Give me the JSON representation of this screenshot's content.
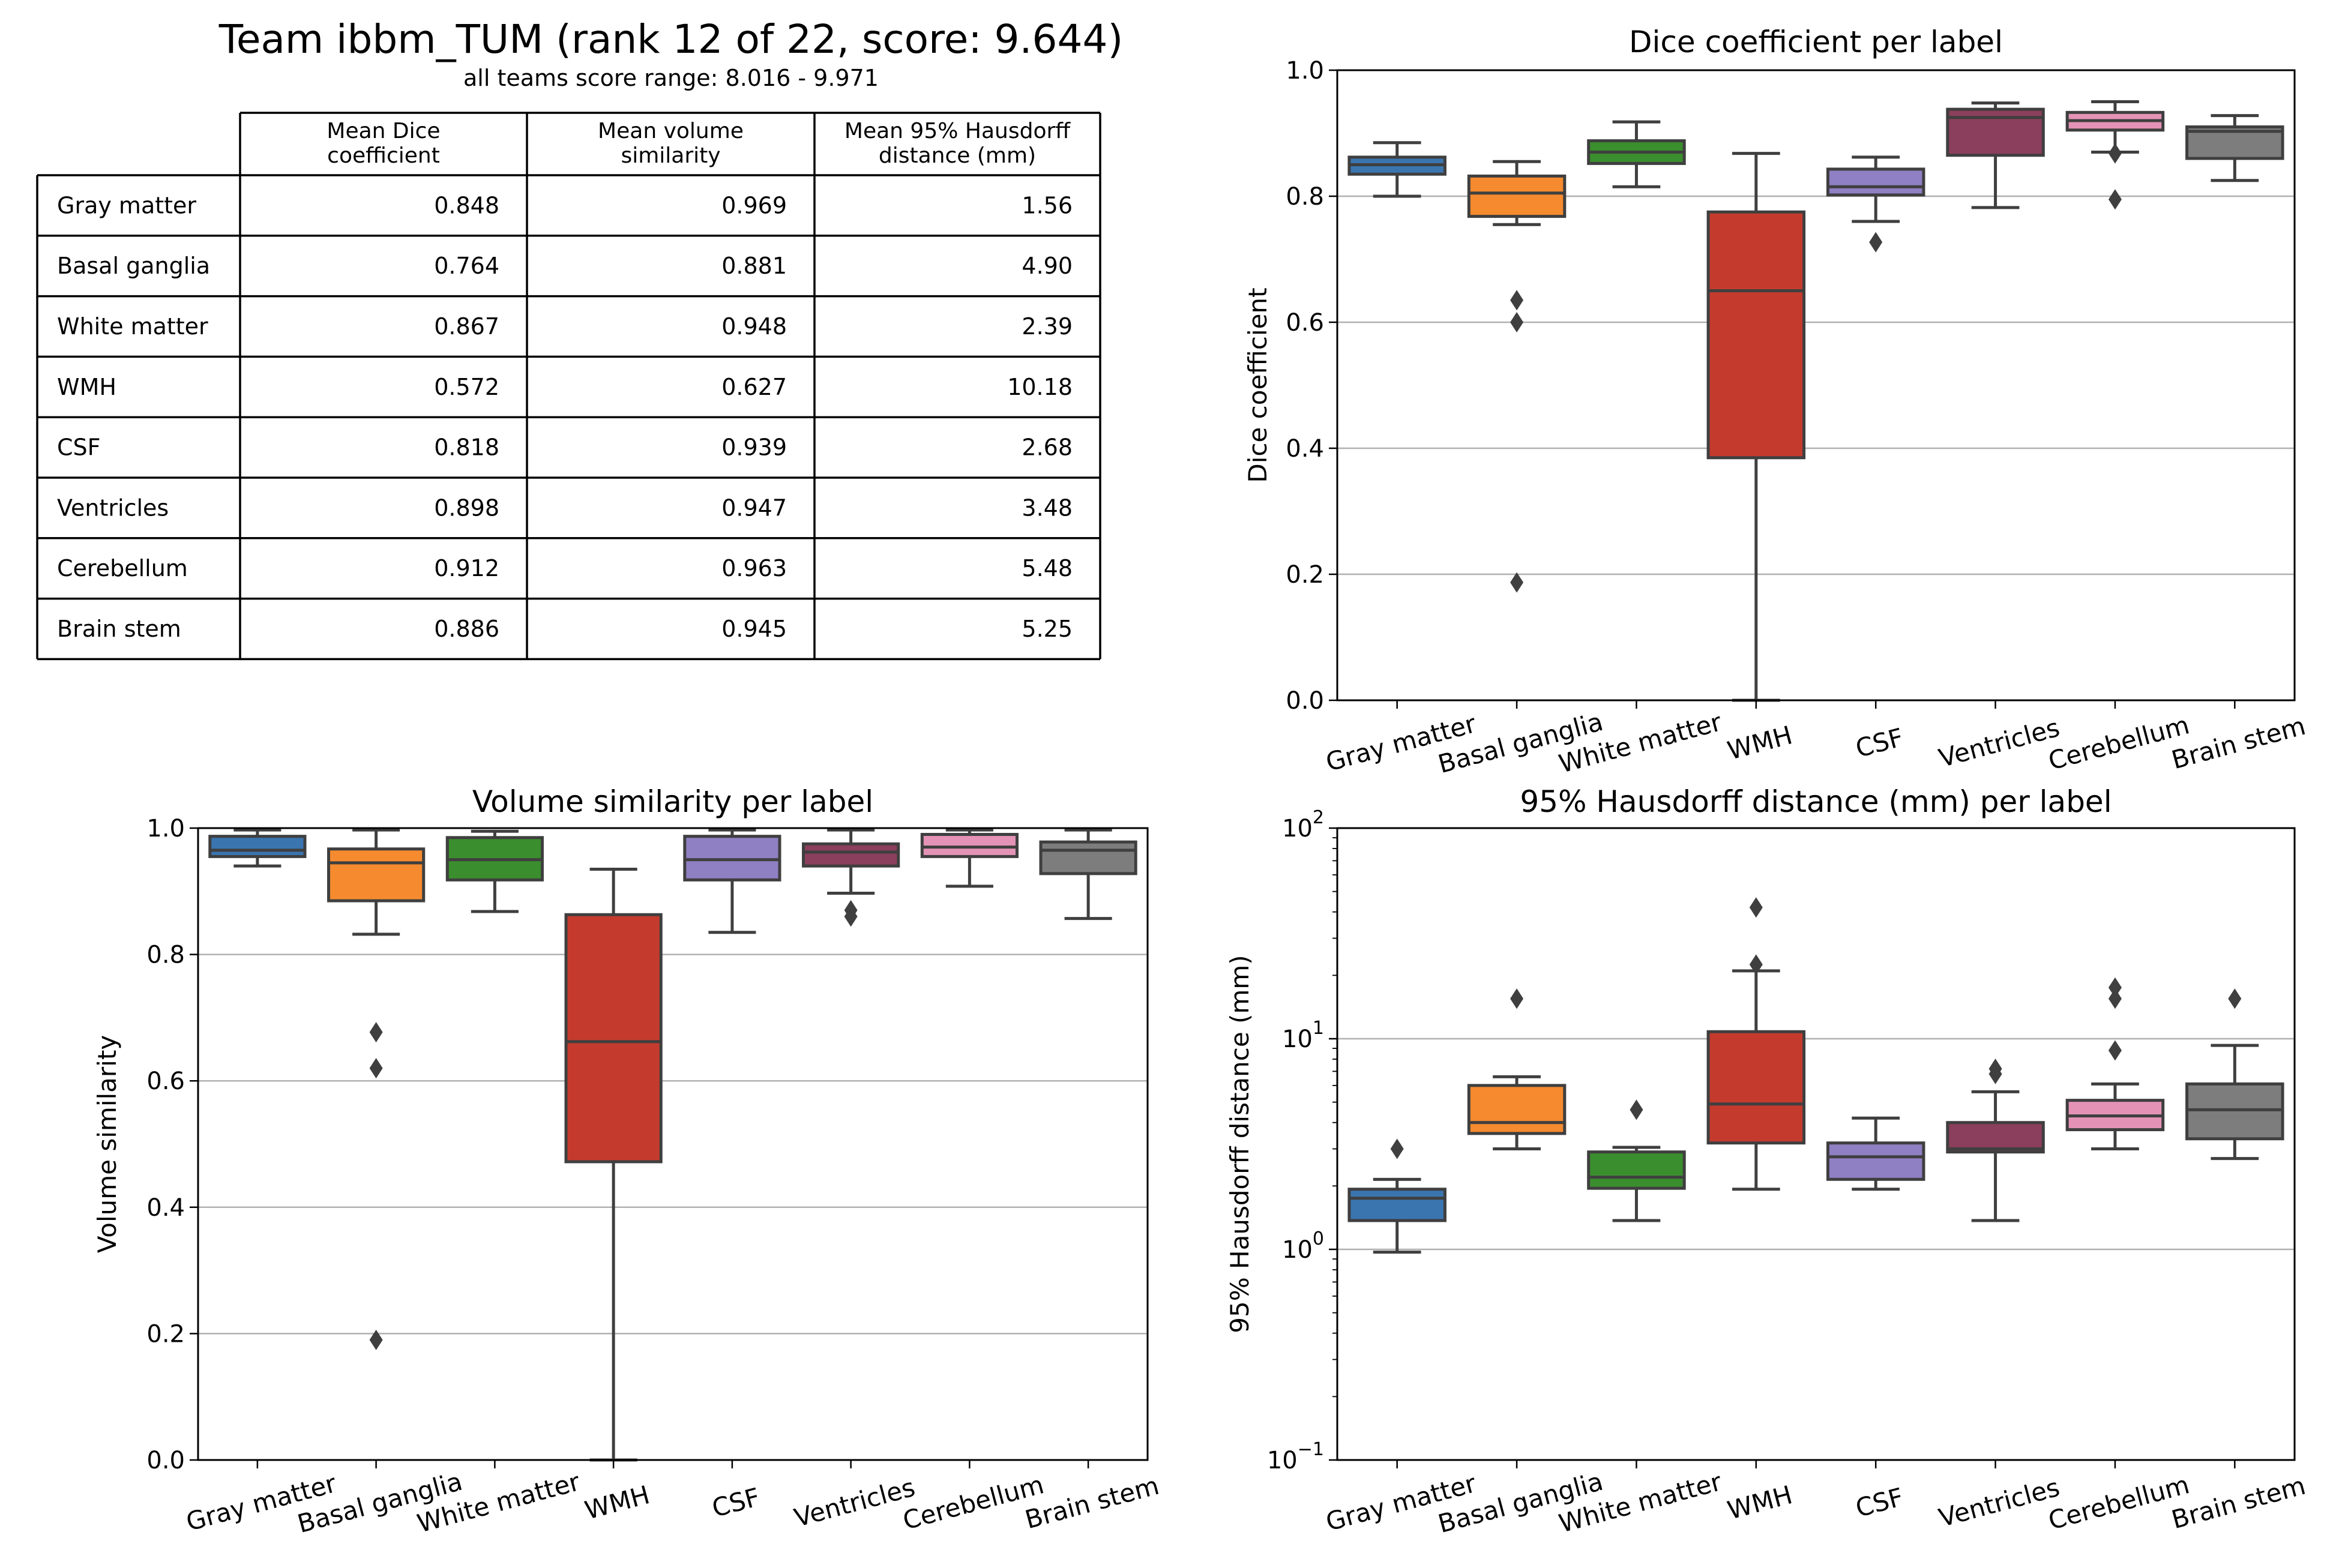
{
  "header": {
    "title": "Team ibbm_TUM (rank 12 of 22, score: 9.644)",
    "subtitle": "all teams score range: 8.016 - 9.971"
  },
  "table": {
    "columns": [
      "Mean Dice\ncoefficient",
      "Mean volume\nsimilarity",
      "Mean 95% Hausdorff\ndistance (mm)"
    ],
    "rows": [
      {
        "label": "Gray matter",
        "values": [
          "0.848",
          "0.969",
          "1.56"
        ]
      },
      {
        "label": "Basal ganglia",
        "values": [
          "0.764",
          "0.881",
          "4.90"
        ]
      },
      {
        "label": "White matter",
        "values": [
          "0.867",
          "0.948",
          "2.39"
        ]
      },
      {
        "label": "WMH",
        "values": [
          "0.572",
          "0.627",
          "10.18"
        ]
      },
      {
        "label": "CSF",
        "values": [
          "0.818",
          "0.939",
          "2.68"
        ]
      },
      {
        "label": "Ventricles",
        "values": [
          "0.898",
          "0.947",
          "3.48"
        ]
      },
      {
        "label": "Cerebellum",
        "values": [
          "0.912",
          "0.963",
          "5.48"
        ]
      },
      {
        "label": "Brain stem",
        "values": [
          "0.886",
          "0.945",
          "5.25"
        ]
      }
    ]
  },
  "colors": [
    "#3a75b0",
    "#f58a2f",
    "#3b8e2e",
    "#c43b2e",
    "#8f7fc3",
    "#8b3f5c",
    "#e493b6",
    "#7d7d7d"
  ],
  "chart_data": [
    {
      "id": "dice",
      "type": "box",
      "title": "Dice coefficient per label",
      "ylabel": "Dice coefficient",
      "xlabel": "",
      "ylim": [
        0,
        1
      ],
      "yscale": "linear",
      "yticks": [
        0.0,
        0.2,
        0.4,
        0.6,
        0.8,
        1.0
      ],
      "ytick_labels": [
        "0.0",
        "0.2",
        "0.4",
        "0.6",
        "0.8",
        "1.0"
      ],
      "grid": "horizontal",
      "categories": [
        "Gray matter",
        "Basal ganglia",
        "White matter",
        "WMH",
        "CSF",
        "Ventricles",
        "Cerebellum",
        "Brain stem"
      ],
      "boxes": [
        {
          "whislo": 0.8,
          "q1": 0.835,
          "med": 0.85,
          "q3": 0.862,
          "whishi": 0.885,
          "fliers": []
        },
        {
          "whislo": 0.755,
          "q1": 0.768,
          "med": 0.805,
          "q3": 0.832,
          "whishi": 0.855,
          "fliers": [
            0.635,
            0.6,
            0.187
          ]
        },
        {
          "whislo": 0.815,
          "q1": 0.852,
          "med": 0.87,
          "q3": 0.888,
          "whishi": 0.918,
          "fliers": []
        },
        {
          "whislo": 0.0,
          "q1": 0.385,
          "med": 0.65,
          "q3": 0.775,
          "whishi": 0.868,
          "fliers": []
        },
        {
          "whislo": 0.76,
          "q1": 0.802,
          "med": 0.815,
          "q3": 0.843,
          "whishi": 0.862,
          "fliers": [
            0.727
          ]
        },
        {
          "whislo": 0.782,
          "q1": 0.865,
          "med": 0.925,
          "q3": 0.938,
          "whishi": 0.948,
          "fliers": []
        },
        {
          "whislo": 0.87,
          "q1": 0.905,
          "med": 0.92,
          "q3": 0.933,
          "whishi": 0.95,
          "fliers": [
            0.868,
            0.795
          ]
        },
        {
          "whislo": 0.825,
          "q1": 0.86,
          "med": 0.903,
          "q3": 0.91,
          "whishi": 0.928,
          "fliers": []
        }
      ]
    },
    {
      "id": "volsim",
      "type": "box",
      "title": "Volume similarity per label",
      "ylabel": "Volume similarity",
      "xlabel": "",
      "ylim": [
        0,
        1
      ],
      "yscale": "linear",
      "yticks": [
        0.0,
        0.2,
        0.4,
        0.6,
        0.8,
        1.0
      ],
      "ytick_labels": [
        "0.0",
        "0.2",
        "0.4",
        "0.6",
        "0.8",
        "1.0"
      ],
      "grid": "horizontal",
      "categories": [
        "Gray matter",
        "Basal ganglia",
        "White matter",
        "WMH",
        "CSF",
        "Ventricles",
        "Cerebellum",
        "Brain stem"
      ],
      "boxes": [
        {
          "whislo": 0.94,
          "q1": 0.955,
          "med": 0.965,
          "q3": 0.987,
          "whishi": 0.997,
          "fliers": []
        },
        {
          "whislo": 0.832,
          "q1": 0.885,
          "med": 0.945,
          "q3": 0.967,
          "whishi": 0.997,
          "fliers": [
            0.677,
            0.62,
            0.19
          ]
        },
        {
          "whislo": 0.868,
          "q1": 0.918,
          "med": 0.95,
          "q3": 0.985,
          "whishi": 0.995,
          "fliers": []
        },
        {
          "whislo": 0.0,
          "q1": 0.472,
          "med": 0.662,
          "q3": 0.863,
          "whishi": 0.935,
          "fliers": []
        },
        {
          "whislo": 0.835,
          "q1": 0.918,
          "med": 0.95,
          "q3": 0.987,
          "whishi": 0.997,
          "fliers": []
        },
        {
          "whislo": 0.897,
          "q1": 0.94,
          "med": 0.962,
          "q3": 0.975,
          "whishi": 0.997,
          "fliers": [
            0.87,
            0.86
          ]
        },
        {
          "whislo": 0.908,
          "q1": 0.955,
          "med": 0.97,
          "q3": 0.99,
          "whishi": 0.997,
          "fliers": []
        },
        {
          "whislo": 0.857,
          "q1": 0.928,
          "med": 0.965,
          "q3": 0.978,
          "whishi": 0.997,
          "fliers": []
        }
      ]
    },
    {
      "id": "hd95",
      "type": "box",
      "title": "95% Hausdorff distance (mm) per label",
      "ylabel": "95% Hausdorff distance (mm)",
      "xlabel": "",
      "ylim": [
        0.1,
        100
      ],
      "yscale": "log",
      "yticks": [
        0.1,
        1,
        10,
        100
      ],
      "ytick_base": "10",
      "ytick_exponents": [
        "−1",
        "0",
        "1",
        "2"
      ],
      "grid": "horizontal",
      "categories": [
        "Gray matter",
        "Basal ganglia",
        "White matter",
        "WMH",
        "CSF",
        "Ventricles",
        "Cerebellum",
        "Brain stem"
      ],
      "boxes": [
        {
          "whislo": 0.97,
          "q1": 1.37,
          "med": 1.75,
          "q3": 1.93,
          "whishi": 2.15,
          "fliers": [
            3.0
          ]
        },
        {
          "whislo": 3.0,
          "q1": 3.55,
          "med": 4.0,
          "q3": 6.0,
          "whishi": 6.6,
          "fliers": [
            15.5
          ]
        },
        {
          "whislo": 1.37,
          "q1": 1.95,
          "med": 2.2,
          "q3": 2.9,
          "whishi": 3.05,
          "fliers": [
            4.6
          ]
        },
        {
          "whislo": 1.93,
          "q1": 3.2,
          "med": 4.9,
          "q3": 10.8,
          "whishi": 21.0,
          "fliers": [
            22.5,
            42.0
          ]
        },
        {
          "whislo": 1.93,
          "q1": 2.15,
          "med": 2.75,
          "q3": 3.2,
          "whishi": 4.2,
          "fliers": []
        },
        {
          "whislo": 1.37,
          "q1": 2.9,
          "med": 3.0,
          "q3": 4.0,
          "whishi": 5.6,
          "fliers": [
            6.8,
            7.2
          ]
        },
        {
          "whislo": 3.0,
          "q1": 3.7,
          "med": 4.3,
          "q3": 5.1,
          "whishi": 6.1,
          "fliers": [
            8.8,
            15.5,
            17.5
          ]
        },
        {
          "whislo": 2.7,
          "q1": 3.35,
          "med": 4.6,
          "q3": 6.1,
          "whishi": 9.3,
          "fliers": [
            15.5
          ]
        }
      ]
    }
  ]
}
